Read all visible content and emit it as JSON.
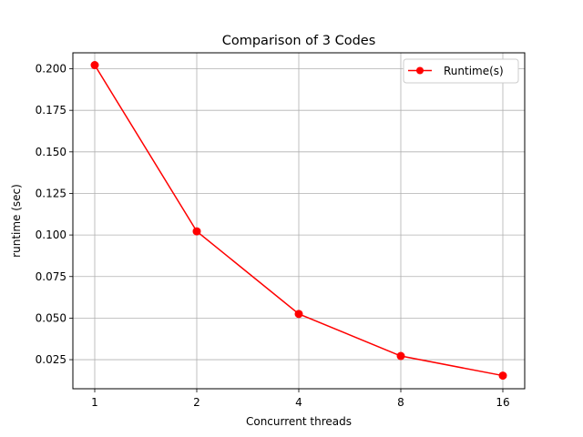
{
  "chart_data": {
    "type": "line",
    "title": "Comparison of 3 Codes",
    "xlabel": "Concurrent threads",
    "ylabel": "runtime (sec)",
    "x_categories": [
      "1",
      "2",
      "4",
      "8",
      "16"
    ],
    "yticks": [
      0.025,
      0.05,
      0.075,
      0.1,
      0.125,
      0.15,
      0.175,
      0.2
    ],
    "ytick_labels": [
      "0.025",
      "0.050",
      "0.075",
      "0.100",
      "0.125",
      "0.150",
      "0.175",
      "0.200"
    ],
    "ylim": [
      0.0075,
      0.2096
    ],
    "grid": true,
    "legend_position": "top-right",
    "series": [
      {
        "name": "Runtime(s)",
        "color": "#ff0000",
        "marker": "circle",
        "values": [
          0.2022,
          0.1022,
          0.0525,
          0.0272,
          0.0154
        ]
      }
    ]
  }
}
